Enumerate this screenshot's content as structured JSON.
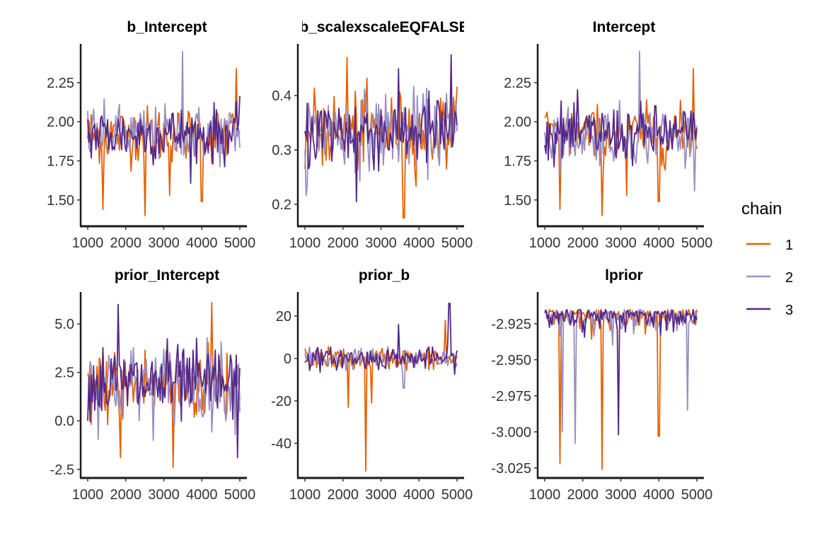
{
  "figure": {
    "legend_title": "chain",
    "legend_placement": "right",
    "chains": [
      {
        "name": "1",
        "color": "#E66101"
      },
      {
        "name": "2",
        "color": "#998EC3"
      },
      {
        "name": "3",
        "color": "#542788"
      }
    ]
  },
  "chart_data": [
    {
      "type": "line",
      "title": "b_Intercept",
      "xlim": [
        1000,
        5000
      ],
      "ylim": [
        1.35,
        2.48
      ],
      "x_ticks": [
        1000,
        2000,
        3000,
        4000,
        5000
      ],
      "x_tick_labels": [
        "1000",
        "2000",
        "3000",
        "4000",
        "5000"
      ],
      "y_ticks": [
        1.5,
        1.75,
        2.0,
        2.25
      ],
      "y_tick_labels": [
        "1.50",
        "1.75",
        "2.00",
        "2.25"
      ],
      "trace": {
        "center": 1.92,
        "spread": 0.09,
        "n": 130,
        "spikes": [
          {
            "chain": 1,
            "x": 1400,
            "y": 1.44
          },
          {
            "chain": 1,
            "x": 2500,
            "y": 1.4
          },
          {
            "chain": 1,
            "x": 4900,
            "y": 2.34
          },
          {
            "chain": 2,
            "x": 3500,
            "y": 2.45
          },
          {
            "chain": 1,
            "x": 3150,
            "y": 1.53
          },
          {
            "chain": 1,
            "x": 4000,
            "y": 1.49
          }
        ]
      }
    },
    {
      "type": "line",
      "title": "b_scalexscaleEQFALSE",
      "xlim": [
        1000,
        5000
      ],
      "ylim": [
        0.165,
        0.49
      ],
      "x_ticks": [
        1000,
        2000,
        3000,
        4000,
        5000
      ],
      "x_tick_labels": [
        "1000",
        "2000",
        "3000",
        "4000",
        "5000"
      ],
      "y_ticks": [
        0.2,
        0.3,
        0.4
      ],
      "y_tick_labels": [
        "0.2",
        "0.3",
        "0.4"
      ],
      "trace": {
        "center": 0.335,
        "spread": 0.035,
        "n": 130,
        "spikes": [
          {
            "chain": 1,
            "x": 3600,
            "y": 0.175
          },
          {
            "chain": 1,
            "x": 2100,
            "y": 0.47
          },
          {
            "chain": 3,
            "x": 4850,
            "y": 0.475
          },
          {
            "chain": 3,
            "x": 2350,
            "y": 0.205
          },
          {
            "chain": 2,
            "x": 1050,
            "y": 0.235
          }
        ]
      }
    },
    {
      "type": "line",
      "title": "Intercept",
      "xlim": [
        1000,
        5000
      ],
      "ylim": [
        1.35,
        2.48
      ],
      "x_ticks": [
        1000,
        2000,
        3000,
        4000,
        5000
      ],
      "x_tick_labels": [
        "1000",
        "2000",
        "3000",
        "4000",
        "5000"
      ],
      "y_ticks": [
        1.5,
        1.75,
        2.0,
        2.25
      ],
      "y_tick_labels": [
        "1.50",
        "1.75",
        "2.00",
        "2.25"
      ],
      "trace": {
        "center": 1.92,
        "spread": 0.09,
        "n": 130,
        "spikes": [
          {
            "chain": 1,
            "x": 1400,
            "y": 1.44
          },
          {
            "chain": 1,
            "x": 2500,
            "y": 1.4
          },
          {
            "chain": 1,
            "x": 4900,
            "y": 2.34
          },
          {
            "chain": 2,
            "x": 3500,
            "y": 2.45
          },
          {
            "chain": 1,
            "x": 3150,
            "y": 1.53
          },
          {
            "chain": 1,
            "x": 4000,
            "y": 1.49
          }
        ]
      }
    },
    {
      "type": "line",
      "title": "prior_Intercept",
      "xlim": [
        1000,
        5000
      ],
      "ylim": [
        -2.8,
        6.5
      ],
      "x_ticks": [
        1000,
        2000,
        3000,
        4000,
        5000
      ],
      "x_tick_labels": [
        "1000",
        "2000",
        "3000",
        "4000",
        "5000"
      ],
      "y_ticks": [
        -2.5,
        0.0,
        2.5,
        5.0
      ],
      "y_tick_labels": [
        "-2.5",
        "0.0",
        "2.5",
        "5.0"
      ],
      "trace": {
        "center": 1.9,
        "spread": 1.0,
        "n": 130,
        "spikes": [
          {
            "chain": 1,
            "x": 3250,
            "y": -2.4
          },
          {
            "chain": 1,
            "x": 4250,
            "y": 6.1
          },
          {
            "chain": 1,
            "x": 1850,
            "y": -1.9
          },
          {
            "chain": 3,
            "x": 4950,
            "y": -1.9
          },
          {
            "chain": 3,
            "x": 1800,
            "y": 6.0
          }
        ]
      }
    },
    {
      "type": "line",
      "title": "prior_b",
      "xlim": [
        1000,
        5000
      ],
      "ylim": [
        -55,
        30
      ],
      "x_ticks": [
        1000,
        2000,
        3000,
        4000,
        5000
      ],
      "x_tick_labels": [
        "1000",
        "2000",
        "3000",
        "4000",
        "5000"
      ],
      "y_ticks": [
        -40,
        -20,
        0,
        20
      ],
      "y_tick_labels": [
        "-40",
        "-20",
        "0",
        "20"
      ],
      "trace": {
        "center": 0,
        "spread": 2.5,
        "n": 130,
        "spikes": [
          {
            "chain": 1,
            "x": 2600,
            "y": -53
          },
          {
            "chain": 1,
            "x": 2150,
            "y": -23
          },
          {
            "chain": 1,
            "x": 2750,
            "y": -21
          },
          {
            "chain": 3,
            "x": 4800,
            "y": 26
          },
          {
            "chain": 3,
            "x": 3450,
            "y": 16
          },
          {
            "chain": 1,
            "x": 4700,
            "y": 18
          },
          {
            "chain": 2,
            "x": 3600,
            "y": -14
          }
        ]
      }
    },
    {
      "type": "line",
      "title": "lprior",
      "xlim": [
        1000,
        5000
      ],
      "ylim": [
        -3.03,
        -2.905
      ],
      "x_ticks": [
        1000,
        2000,
        3000,
        4000,
        5000
      ],
      "x_tick_labels": [
        "1000",
        "2000",
        "3000",
        "4000",
        "5000"
      ],
      "y_ticks": [
        -3.025,
        -3.0,
        -2.975,
        -2.95,
        -2.925
      ],
      "y_tick_labels": [
        "-3.025",
        "-3.000",
        "-2.975",
        "-2.950",
        "-2.925"
      ],
      "trace": {
        "center": -2.918,
        "spread": 0.006,
        "n": 130,
        "skew": "down",
        "spikes": [
          {
            "chain": 1,
            "x": 2500,
            "y": -3.026
          },
          {
            "chain": 1,
            "x": 1400,
            "y": -3.022
          },
          {
            "chain": 1,
            "x": 4000,
            "y": -3.003
          },
          {
            "chain": 2,
            "x": 1800,
            "y": -3.008
          },
          {
            "chain": 2,
            "x": 1450,
            "y": -3.0
          },
          {
            "chain": 3,
            "x": 2950,
            "y": -3.002
          },
          {
            "chain": 2,
            "x": 4750,
            "y": -2.985
          }
        ]
      }
    }
  ]
}
